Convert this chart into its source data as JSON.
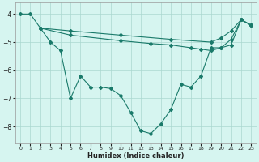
{
  "xlabel": "Humidex (Indice chaleur)",
  "bg_color": "#d6f5f0",
  "line_color": "#1a7a6a",
  "grid_color": "#aad8d0",
  "xlim": [
    -0.5,
    23.5
  ],
  "ylim": [
    -8.6,
    -3.6
  ],
  "yticks": [
    -8,
    -7,
    -6,
    -5,
    -4
  ],
  "xticks": [
    0,
    1,
    2,
    3,
    4,
    5,
    6,
    7,
    8,
    9,
    10,
    11,
    12,
    13,
    14,
    15,
    16,
    17,
    18,
    19,
    20,
    21,
    22,
    23
  ],
  "line1": [
    [
      0,
      -4.0
    ],
    [
      1,
      -4.0
    ],
    [
      2,
      -4.5
    ],
    [
      3,
      -5.0
    ],
    [
      4,
      -5.3
    ],
    [
      5,
      -7.0
    ],
    [
      6,
      -6.2
    ],
    [
      7,
      -6.6
    ],
    [
      8,
      -6.6
    ],
    [
      9,
      -6.65
    ],
    [
      10,
      -6.9
    ],
    [
      11,
      -7.5
    ],
    [
      12,
      -8.15
    ],
    [
      13,
      -8.25
    ],
    [
      14,
      -7.9
    ],
    [
      15,
      -7.4
    ],
    [
      16,
      -6.5
    ],
    [
      17,
      -6.6
    ],
    [
      18,
      -6.2
    ],
    [
      19,
      -5.2
    ],
    [
      20,
      -5.2
    ],
    [
      21,
      -5.1
    ],
    [
      22,
      -4.2
    ],
    [
      23,
      -4.4
    ]
  ],
  "line2": [
    [
      2,
      -4.5
    ],
    [
      5,
      -4.6
    ],
    [
      10,
      -4.75
    ],
    [
      15,
      -4.9
    ],
    [
      19,
      -5.0
    ],
    [
      20,
      -4.85
    ],
    [
      21,
      -4.6
    ],
    [
      22,
      -4.2
    ],
    [
      23,
      -4.4
    ]
  ],
  "line3": [
    [
      2,
      -4.5
    ],
    [
      5,
      -4.75
    ],
    [
      10,
      -4.95
    ],
    [
      13,
      -5.05
    ],
    [
      15,
      -5.1
    ],
    [
      17,
      -5.2
    ],
    [
      18,
      -5.25
    ],
    [
      19,
      -5.3
    ],
    [
      20,
      -5.2
    ],
    [
      21,
      -4.9
    ],
    [
      22,
      -4.2
    ],
    [
      23,
      -4.4
    ]
  ]
}
